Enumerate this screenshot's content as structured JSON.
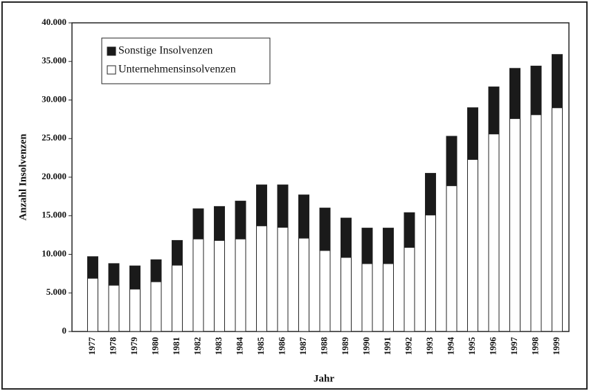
{
  "chart_data": {
    "type": "stacked_bar",
    "x_label": "Jahr",
    "y_label": "Anzahl Insolvenzen",
    "categories": [
      "1977",
      "1978",
      "1979",
      "1980",
      "1981",
      "1982",
      "1983",
      "1984",
      "1985",
      "1986",
      "1987",
      "1988",
      "1989",
      "1990",
      "1991",
      "1992",
      "1993",
      "1994",
      "1995",
      "1996",
      "1997",
      "1998",
      "1999"
    ],
    "series": [
      {
        "name": "Unternehmensinsolvenzen",
        "color": "#ffffff",
        "values": [
          6900,
          6000,
          5500,
          6450,
          8600,
          12000,
          11800,
          12000,
          13700,
          13500,
          12100,
          10500,
          9600,
          8800,
          8800,
          10900,
          15100,
          18900,
          22300,
          25600,
          27600,
          28100,
          29000
        ]
      },
      {
        "name": "Sonstige Insolvenzen",
        "color": "#1a1a1a",
        "values": [
          2800,
          2800,
          3000,
          2850,
          3200,
          3900,
          4400,
          4900,
          5300,
          5500,
          5600,
          5500,
          5100,
          4600,
          4600,
          4500,
          5400,
          6400,
          6700,
          6100,
          6500,
          6300,
          6900
        ]
      }
    ],
    "ylim": [
      0,
      40000
    ],
    "yticks": [
      0,
      {
        "value": 5000,
        "label": "5.000"
      },
      {
        "value": 10000,
        "label": "10.000"
      },
      {
        "value": 15000,
        "label": "15.000"
      },
      {
        "value": 20000,
        "label": "20.000"
      },
      {
        "value": 25000,
        "label": "25.000"
      },
      {
        "value": 30000,
        "label": "30.000"
      },
      {
        "value": 35000,
        "label": "35.000"
      },
      {
        "value": 40000,
        "label": "40.000"
      }
    ],
    "grid": false,
    "legend": "top-left"
  }
}
